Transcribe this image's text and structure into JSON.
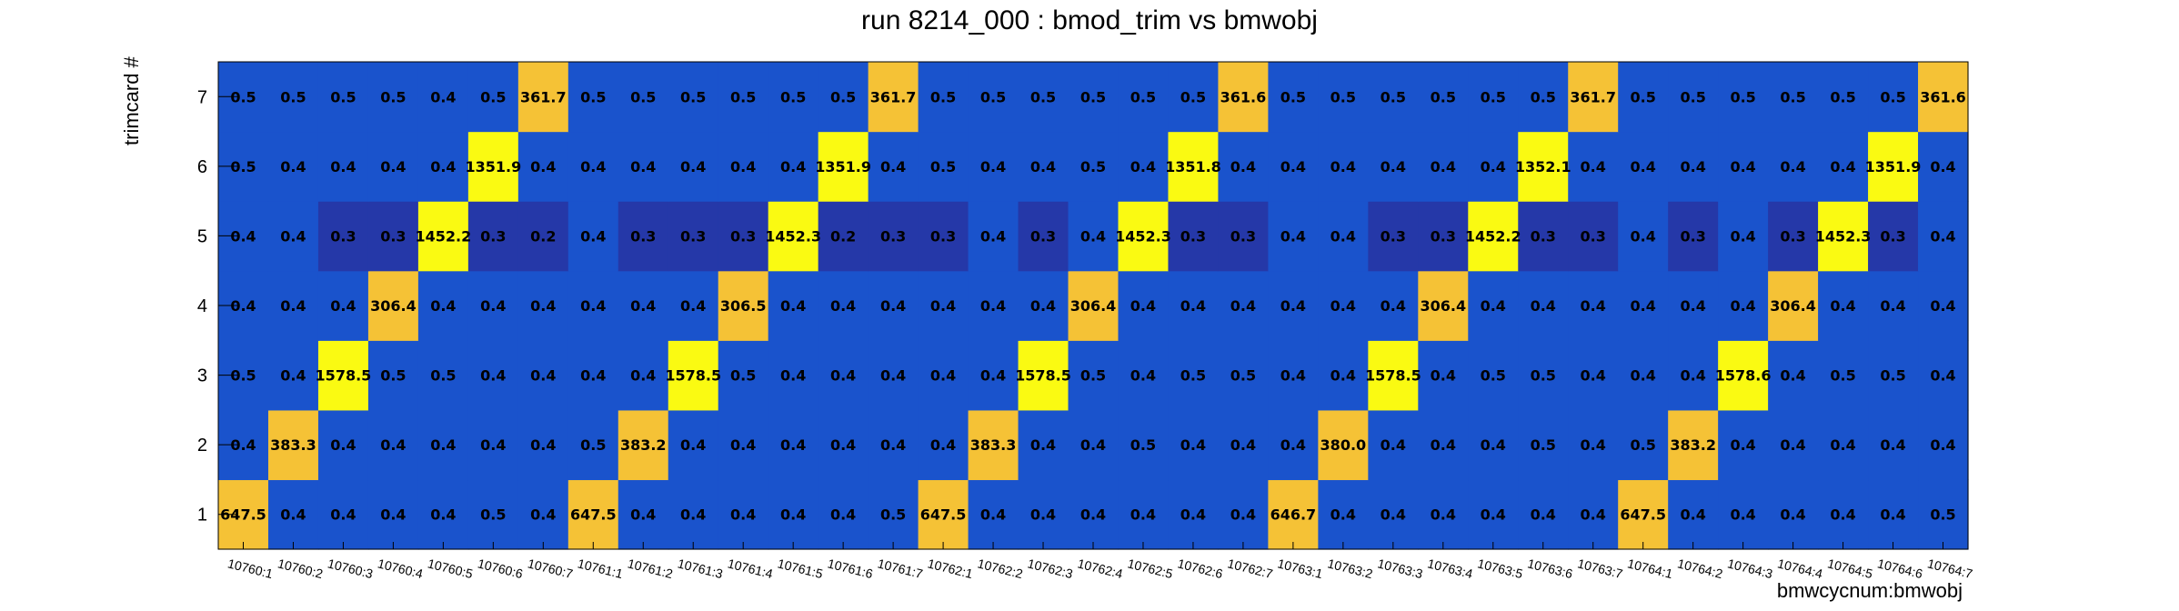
{
  "chart_data": {
    "type": "heatmap",
    "title": "run 8214_000 : bmod_trim vs bmwobj",
    "xlabel": "bmwcycnum:bmwobj",
    "ylabel": "trimcard #",
    "x_categories": [
      "10760:1",
      "10760:2",
      "10760:3",
      "10760:4",
      "10760:5",
      "10760:6",
      "10760:7",
      "10761:1",
      "10761:2",
      "10761:3",
      "10761:4",
      "10761:5",
      "10761:6",
      "10761:7",
      "10762:1",
      "10762:2",
      "10762:3",
      "10762:4",
      "10762:5",
      "10762:6",
      "10762:7",
      "10763:1",
      "10763:2",
      "10763:3",
      "10763:4",
      "10763:5",
      "10763:6",
      "10763:7",
      "10764:1",
      "10764:2",
      "10764:3",
      "10764:4",
      "10764:5",
      "10764:6",
      "10764:7"
    ],
    "y_categories": [
      "1",
      "2",
      "3",
      "4",
      "5",
      "6",
      "7"
    ],
    "values": [
      [
        647.5,
        0.4,
        0.4,
        0.4,
        0.4,
        0.5,
        0.4,
        647.5,
        0.4,
        0.4,
        0.4,
        0.4,
        0.4,
        0.5,
        647.5,
        0.4,
        0.4,
        0.4,
        0.4,
        0.4,
        0.4,
        646.7,
        0.4,
        0.4,
        0.4,
        0.4,
        0.4,
        0.4,
        647.5,
        0.4,
        0.4,
        0.4,
        0.4,
        0.4,
        0.5
      ],
      [
        0.4,
        383.3,
        0.4,
        0.4,
        0.4,
        0.4,
        0.4,
        0.5,
        383.2,
        0.4,
        0.4,
        0.4,
        0.4,
        0.4,
        0.4,
        383.3,
        0.4,
        0.4,
        0.5,
        0.4,
        0.4,
        0.4,
        380.0,
        0.4,
        0.4,
        0.4,
        0.5,
        0.4,
        0.5,
        383.2,
        0.4,
        0.4,
        0.4,
        0.4,
        0.4
      ],
      [
        0.5,
        0.4,
        1578.5,
        0.5,
        0.5,
        0.4,
        0.4,
        0.4,
        0.4,
        1578.5,
        0.5,
        0.4,
        0.4,
        0.4,
        0.4,
        0.4,
        1578.5,
        0.5,
        0.4,
        0.5,
        0.5,
        0.4,
        0.4,
        1578.5,
        0.4,
        0.5,
        0.5,
        0.4,
        0.4,
        0.4,
        1578.6,
        0.4,
        0.5,
        0.5,
        0.4
      ],
      [
        0.4,
        0.4,
        0.4,
        306.4,
        0.4,
        0.4,
        0.4,
        0.4,
        0.4,
        0.4,
        306.5,
        0.4,
        0.4,
        0.4,
        0.4,
        0.4,
        0.4,
        306.4,
        0.4,
        0.4,
        0.4,
        0.4,
        0.4,
        0.4,
        306.4,
        0.4,
        0.4,
        0.4,
        0.4,
        0.4,
        0.4,
        306.4,
        0.4,
        0.4,
        0.4
      ],
      [
        0.4,
        0.4,
        0.3,
        0.3,
        1452.2,
        0.3,
        0.2,
        0.4,
        0.3,
        0.3,
        0.3,
        1452.3,
        0.2,
        0.3,
        0.3,
        0.4,
        0.3,
        0.4,
        1452.3,
        0.3,
        0.3,
        0.4,
        0.4,
        0.3,
        0.3,
        1452.2,
        0.3,
        0.3,
        0.4,
        0.3,
        0.4,
        0.3,
        1452.3,
        0.3,
        0.4
      ],
      [
        0.5,
        0.4,
        0.4,
        0.4,
        0.4,
        1351.9,
        0.4,
        0.4,
        0.4,
        0.4,
        0.4,
        0.4,
        1351.9,
        0.4,
        0.5,
        0.4,
        0.4,
        0.5,
        0.4,
        1351.8,
        0.4,
        0.4,
        0.4,
        0.4,
        0.4,
        0.4,
        1352.1,
        0.4,
        0.4,
        0.4,
        0.4,
        0.4,
        0.4,
        1351.9,
        0.4
      ],
      [
        0.5,
        0.5,
        0.5,
        0.5,
        0.4,
        0.5,
        361.7,
        0.5,
        0.5,
        0.5,
        0.5,
        0.5,
        0.5,
        361.7,
        0.5,
        0.5,
        0.5,
        0.5,
        0.5,
        0.5,
        361.6,
        0.5,
        0.5,
        0.5,
        0.5,
        0.5,
        0.5,
        361.7,
        0.5,
        0.5,
        0.5,
        0.5,
        0.5,
        0.5,
        361.6
      ]
    ],
    "colors": {
      "low_dark": "#2538a8",
      "low": "#1a53cc",
      "mid": "#f5c236",
      "high": "#fafa12"
    },
    "grid": false,
    "legend": "none"
  }
}
